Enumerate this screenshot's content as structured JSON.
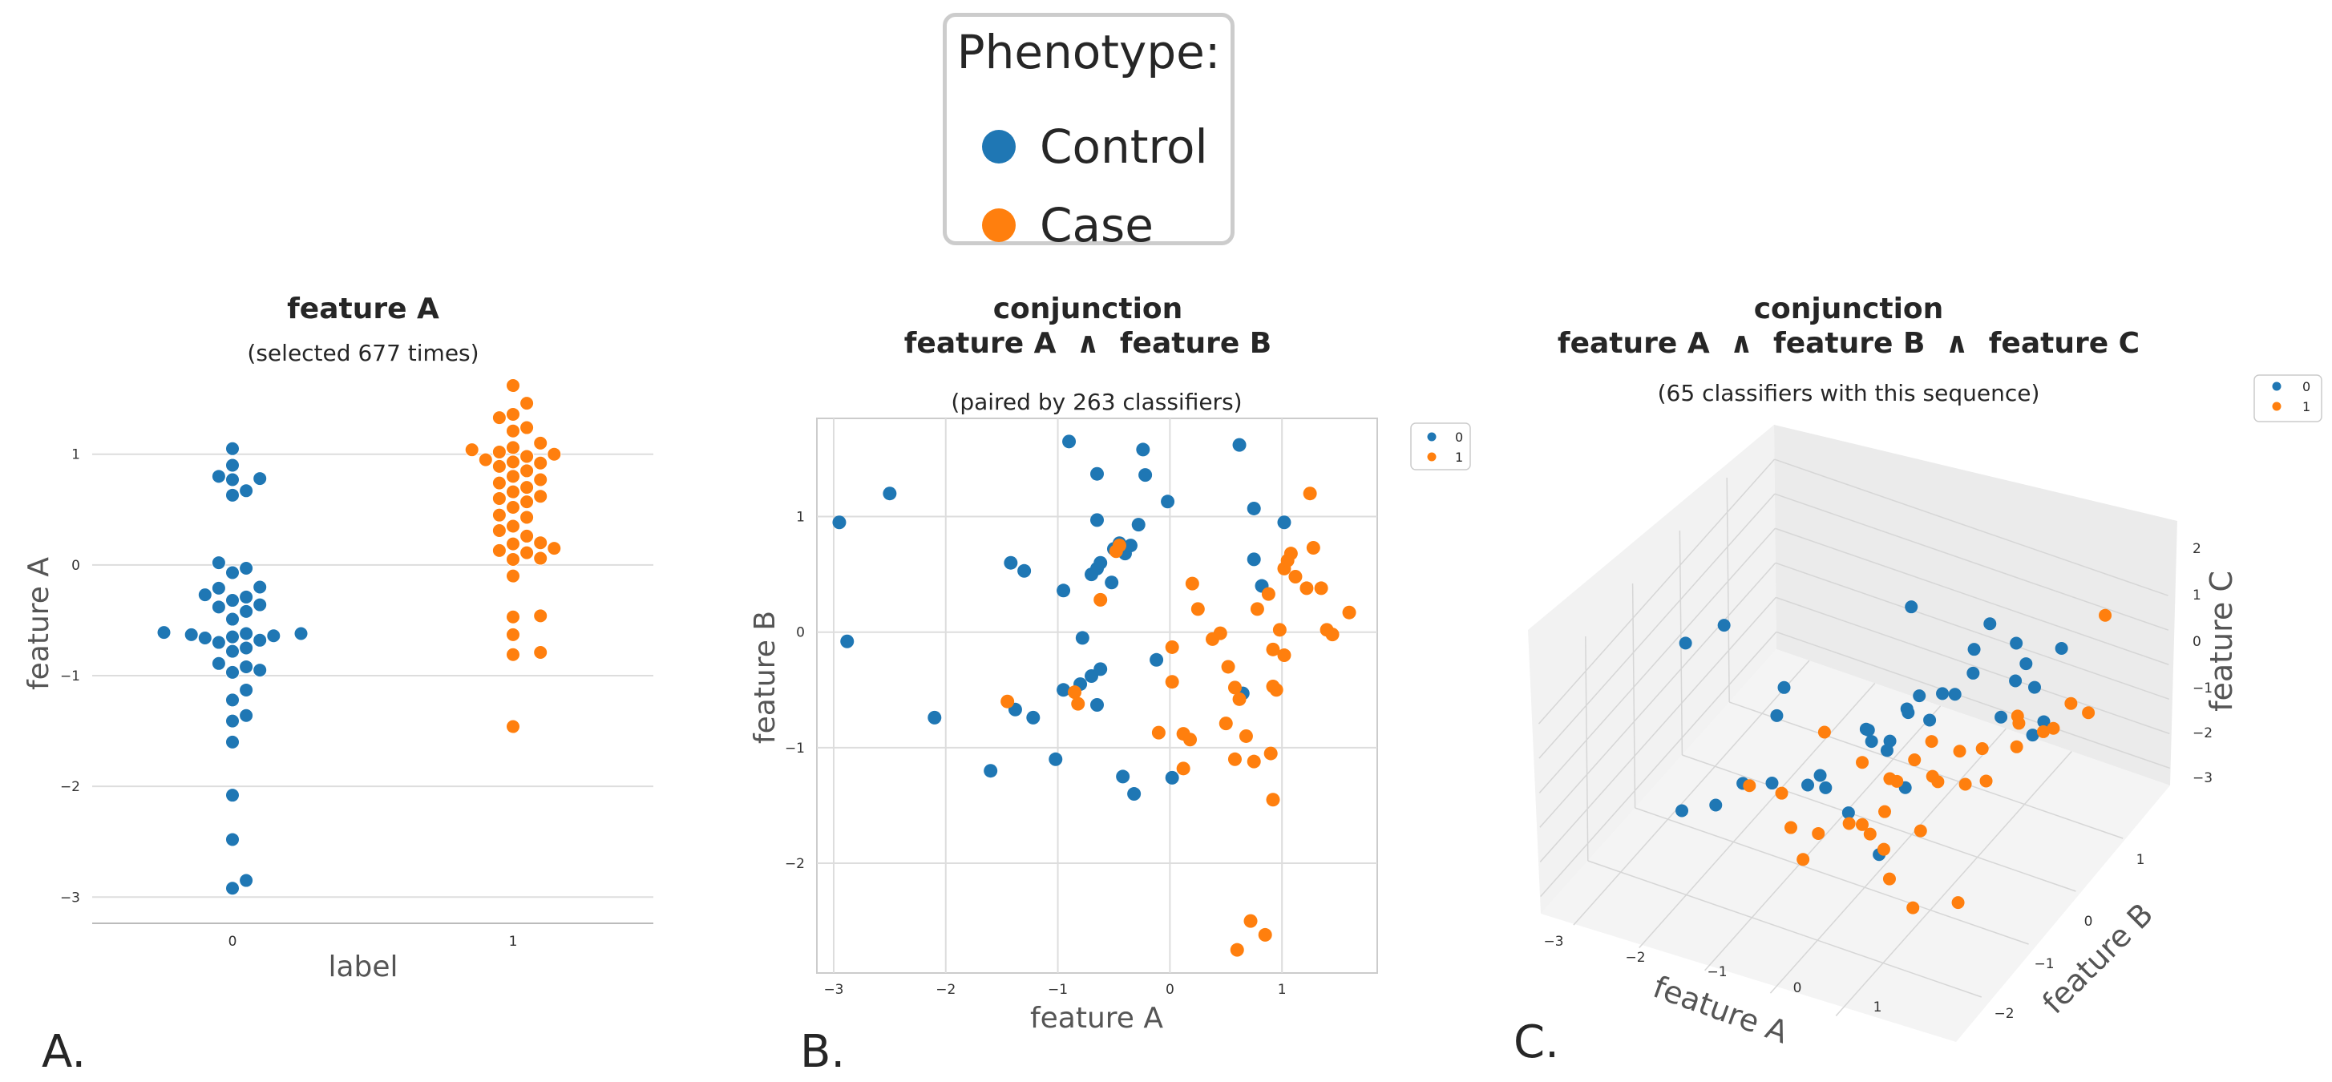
{
  "colors": {
    "control": "#1f77b4",
    "case": "#ff7f0e",
    "grid": "#dddddd",
    "axis_text": "#555555",
    "tick": "#333333"
  },
  "legend": {
    "title": "Phenotype:",
    "items": [
      {
        "label": "Control",
        "color": "#1f77b4"
      },
      {
        "label": "Case",
        "color": "#ff7f0e"
      }
    ]
  },
  "panel_labels": [
    "A.",
    "B.",
    "C."
  ],
  "chart_data": [
    {
      "type": "scatter",
      "subtype": "swarm",
      "title": "feature A",
      "subtitle": "(selected 677 times)",
      "xlabel": "label",
      "ylabel": "feature A",
      "categories": [
        "0",
        "1"
      ],
      "ylim": [
        -3.15,
        1.7
      ],
      "yticks": [
        1,
        0,
        -1,
        -2,
        -3
      ],
      "series": [
        {
          "name": "0",
          "category": "0",
          "values": [
            1.05,
            0.9,
            0.8,
            0.78,
            0.77,
            0.67,
            0.63,
            0.02,
            -0.03,
            -0.07,
            -0.2,
            -0.21,
            -0.27,
            -0.29,
            -0.32,
            -0.36,
            -0.38,
            -0.42,
            -0.49,
            -0.61,
            -0.62,
            -0.62,
            -0.63,
            -0.64,
            -0.65,
            -0.66,
            -0.68,
            -0.7,
            -0.75,
            -0.78,
            -0.89,
            -0.92,
            -0.95,
            -0.97,
            -1.13,
            -1.22,
            -1.36,
            -1.41,
            -1.6,
            -2.08,
            -2.48,
            -2.85,
            -2.92
          ]
        },
        {
          "name": "1",
          "category": "1",
          "values": [
            1.62,
            1.46,
            1.36,
            1.33,
            1.24,
            1.21,
            1.1,
            1.06,
            1.04,
            1.02,
            1.0,
            0.98,
            0.95,
            0.93,
            0.92,
            0.89,
            0.85,
            0.8,
            0.77,
            0.74,
            0.7,
            0.66,
            0.62,
            0.6,
            0.57,
            0.52,
            0.45,
            0.43,
            0.35,
            0.31,
            0.26,
            0.2,
            0.19,
            0.15,
            0.13,
            0.11,
            0.06,
            0.05,
            -0.1,
            -0.46,
            -0.47,
            -0.63,
            -0.79,
            -0.81,
            -1.46
          ]
        }
      ]
    },
    {
      "type": "scatter",
      "title": "conjunction",
      "title_line2": "feature A  ∧  feature B",
      "subtitle": "(paired by 263 classifiers)",
      "xlabel": "feature A",
      "ylabel": "feature B",
      "xlim": [
        -3.15,
        1.85
      ],
      "ylim": [
        -2.95,
        1.85
      ],
      "xticks": [
        -3,
        -2,
        -1,
        0,
        1
      ],
      "yticks": [
        1,
        0,
        -1,
        -2
      ],
      "legend_entries": [
        "0",
        "1"
      ],
      "series": [
        {
          "name": "0",
          "points": [
            [
              -2.95,
              0.95
            ],
            [
              -2.88,
              -0.08
            ],
            [
              -2.5,
              1.2
            ],
            [
              -2.1,
              -0.74
            ],
            [
              -1.6,
              -1.2
            ],
            [
              -1.42,
              0.6
            ],
            [
              -1.38,
              -0.67
            ],
            [
              -1.3,
              0.53
            ],
            [
              -1.22,
              -0.74
            ],
            [
              -1.02,
              -1.1
            ],
            [
              -0.95,
              0.36
            ],
            [
              -0.95,
              -0.5
            ],
            [
              -0.9,
              1.65
            ],
            [
              -0.8,
              -0.45
            ],
            [
              -0.78,
              -0.05
            ],
            [
              -0.7,
              0.5
            ],
            [
              -0.7,
              -0.38
            ],
            [
              -0.65,
              0.55
            ],
            [
              -0.65,
              0.97
            ],
            [
              -0.65,
              1.37
            ],
            [
              -0.65,
              -0.63
            ],
            [
              -0.62,
              -0.32
            ],
            [
              -0.62,
              0.6
            ],
            [
              -0.52,
              0.43
            ],
            [
              -0.5,
              0.72
            ],
            [
              -0.45,
              0.77
            ],
            [
              -0.42,
              -1.25
            ],
            [
              -0.4,
              0.68
            ],
            [
              -0.35,
              0.75
            ],
            [
              -0.32,
              -1.4
            ],
            [
              -0.28,
              0.93
            ],
            [
              -0.24,
              1.58
            ],
            [
              -0.22,
              1.36
            ],
            [
              -0.12,
              -0.24
            ],
            [
              -0.02,
              1.13
            ],
            [
              0.02,
              -1.26
            ],
            [
              0.62,
              1.62
            ],
            [
              0.65,
              -0.53
            ],
            [
              0.75,
              0.63
            ],
            [
              0.75,
              1.07
            ],
            [
              0.82,
              0.4
            ],
            [
              1.02,
              0.95
            ]
          ]
        },
        {
          "name": "1",
          "points": [
            [
              -1.45,
              -0.6
            ],
            [
              -0.85,
              -0.52
            ],
            [
              -0.82,
              -0.62
            ],
            [
              -0.62,
              0.28
            ],
            [
              -0.48,
              0.7
            ],
            [
              -0.45,
              0.75
            ],
            [
              -0.1,
              -0.87
            ],
            [
              0.02,
              -0.43
            ],
            [
              0.02,
              -0.13
            ],
            [
              0.12,
              -0.88
            ],
            [
              0.12,
              -1.18
            ],
            [
              0.18,
              -0.93
            ],
            [
              0.2,
              0.42
            ],
            [
              0.25,
              0.2
            ],
            [
              0.38,
              -0.06
            ],
            [
              0.45,
              -0.01
            ],
            [
              0.5,
              -0.79
            ],
            [
              0.52,
              -0.3
            ],
            [
              0.58,
              -0.48
            ],
            [
              0.58,
              -1.1
            ],
            [
              0.6,
              -2.75
            ],
            [
              0.62,
              -0.58
            ],
            [
              0.68,
              -0.9
            ],
            [
              0.72,
              -2.5
            ],
            [
              0.75,
              -1.12
            ],
            [
              0.78,
              0.2
            ],
            [
              0.85,
              -2.62
            ],
            [
              0.88,
              0.33
            ],
            [
              0.9,
              -1.05
            ],
            [
              0.92,
              -0.47
            ],
            [
              0.92,
              -1.45
            ],
            [
              0.92,
              -0.15
            ],
            [
              0.95,
              -0.5
            ],
            [
              0.98,
              0.02
            ],
            [
              1.02,
              -0.2
            ],
            [
              1.02,
              0.55
            ],
            [
              1.05,
              0.62
            ],
            [
              1.08,
              0.68
            ],
            [
              1.12,
              0.48
            ],
            [
              1.22,
              0.38
            ],
            [
              1.25,
              1.2
            ],
            [
              1.28,
              0.73
            ],
            [
              1.35,
              0.38
            ],
            [
              1.4,
              0.02
            ],
            [
              1.45,
              -0.02
            ],
            [
              1.6,
              0.17
            ]
          ]
        }
      ]
    },
    {
      "type": "scatter",
      "subtype": "3d",
      "title": "conjunction",
      "title_line2": "feature A  ∧  feature B  ∧  feature C",
      "subtitle": "(65 classifiers with this sequence)",
      "xlabel": "feature A",
      "ylabel": "feature B",
      "zlabel": "feature C",
      "xticks": [
        -3,
        -2,
        -1,
        0,
        1
      ],
      "yticks": [
        1,
        0,
        -1,
        -2
      ],
      "zticks": [
        2,
        1,
        0,
        -1,
        -2,
        -3
      ],
      "legend_entries": [
        "0",
        "1"
      ],
      "series": [
        {
          "name": "0",
          "points": [
            [
              -2.7,
              -1.0,
              1.8
            ],
            [
              -2.4,
              -0.6,
              1.9
            ],
            [
              -2.2,
              -1.8,
              -1.5
            ],
            [
              -1.9,
              -1.5,
              -1.6
            ],
            [
              -1.9,
              -0.2,
              -1.0
            ],
            [
              -1.7,
              -1.2,
              -1.3
            ],
            [
              -1.4,
              -1.0,
              -1.4
            ],
            [
              -1.2,
              -1.0,
              1.5
            ],
            [
              -1.1,
              -0.4,
              -1.9
            ],
            [
              -1.0,
              -0.8,
              -1.5
            ],
            [
              -0.9,
              0.3,
              -1.5
            ],
            [
              -0.8,
              -0.7,
              -1.6
            ],
            [
              -0.7,
              1.0,
              1.1
            ],
            [
              -0.6,
              -0.5,
              -2.5
            ],
            [
              -0.6,
              0.0,
              -1.2
            ],
            [
              -0.5,
              -0.2,
              -0.5
            ],
            [
              -0.4,
              0.5,
              -1.0
            ],
            [
              -0.3,
              0.6,
              -0.6
            ],
            [
              -0.2,
              0.2,
              -0.3
            ],
            [
              -0.1,
              -0.3,
              -0.4
            ],
            [
              0.0,
              -0.5,
              -0.3
            ],
            [
              0.0,
              0.4,
              -0.8
            ],
            [
              0.1,
              0.8,
              -0.6
            ],
            [
              0.2,
              0.4,
              0.1
            ],
            [
              0.2,
              -0.4,
              -1.4
            ],
            [
              0.3,
              -1.1,
              -2.2
            ],
            [
              0.4,
              0.8,
              0.9
            ],
            [
              0.5,
              1.0,
              1.4
            ],
            [
              0.6,
              0.5,
              0.8
            ],
            [
              0.8,
              0.8,
              -0.8
            ],
            [
              0.9,
              1.2,
              0.2
            ],
            [
              0.9,
              1.0,
              1.1
            ],
            [
              1.1,
              1.1,
              -0.2
            ],
            [
              1.1,
              0.7,
              0.6
            ],
            [
              1.3,
              1.4,
              0.6
            ],
            [
              1.5,
              0.5,
              -0.4
            ],
            [
              1.6,
              0.6,
              -0.1
            ]
          ]
        },
        {
          "name": "1",
          "points": [
            [
              -1.6,
              -1.2,
              -1.3
            ],
            [
              -1.4,
              -0.8,
              -2.0
            ],
            [
              -1.1,
              -0.3,
              -0.8
            ],
            [
              -0.9,
              -1.3,
              -1.9
            ],
            [
              -0.7,
              -1.0,
              -2.4
            ],
            [
              -0.6,
              -0.2,
              -1.5
            ],
            [
              -0.5,
              -1.6,
              -2.1
            ],
            [
              -0.4,
              0.1,
              -2.3
            ],
            [
              -0.3,
              -0.9,
              -2.0
            ],
            [
              -0.2,
              -0.6,
              -2.7
            ],
            [
              -0.1,
              -0.9,
              -1.9
            ],
            [
              0.0,
              -0.3,
              -1.5
            ],
            [
              0.1,
              0.3,
              -1.2
            ],
            [
              0.1,
              -0.7,
              -1.7
            ],
            [
              0.2,
              -0.2,
              -0.9
            ],
            [
              0.3,
              -1.0,
              -2.2
            ],
            [
              0.4,
              -0.1,
              -1.4
            ],
            [
              0.5,
              -0.5,
              -2.3
            ],
            [
              0.6,
              0.2,
              -1.0
            ],
            [
              0.6,
              -1.3,
              -2.4
            ],
            [
              0.7,
              -0.4,
              -0.9
            ],
            [
              0.8,
              0.4,
              -1.1
            ],
            [
              0.9,
              -0.1,
              -1.3
            ],
            [
              1.0,
              0.9,
              -1.0
            ],
            [
              1.0,
              0.2,
              -1.6
            ],
            [
              1.1,
              -1.5,
              -2.6
            ],
            [
              1.2,
              0.6,
              -0.2
            ],
            [
              1.3,
              1.0,
              -1.2
            ],
            [
              1.4,
              0.3,
              -0.5
            ],
            [
              1.5,
              -1.1,
              -2.8
            ],
            [
              1.6,
              0.8,
              -0.6
            ],
            [
              1.7,
              1.4,
              -1.0
            ],
            [
              1.8,
              0.9,
              0.1
            ],
            [
              1.9,
              1.5,
              1.8
            ]
          ]
        }
      ]
    }
  ]
}
